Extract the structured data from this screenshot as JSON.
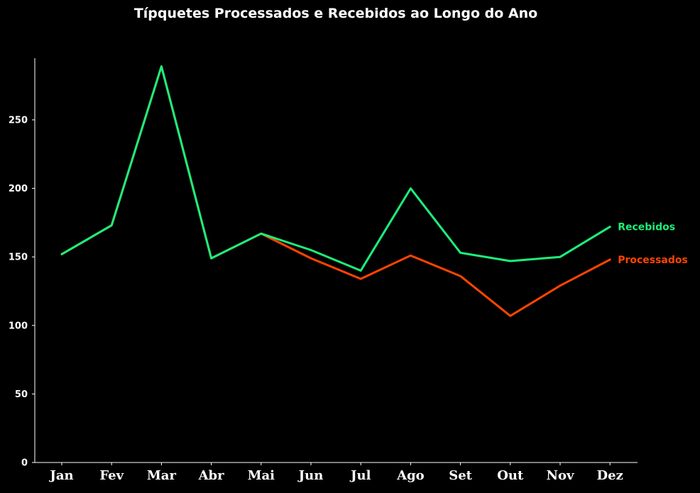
{
  "chart_data": {
    "type": "line",
    "title": "Típquetes Processados e Recebidos ao Longo do Ano",
    "xlabel": "",
    "ylabel": "",
    "categories": [
      "Jan",
      "Fev",
      "Mar",
      "Abr",
      "Mai",
      "Jun",
      "Jul",
      "Ago",
      "Set",
      "Out",
      "Nov",
      "Dez"
    ],
    "yticks": [
      0,
      50,
      100,
      150,
      200,
      250
    ],
    "ylim": [
      0,
      300
    ],
    "grid": false,
    "legend": "inline labels at right end of lines",
    "series": [
      {
        "name": "Processados",
        "color": "#ff4500",
        "values": [
          152,
          173,
          289,
          149,
          167,
          149,
          134,
          151,
          136,
          107,
          129,
          148
        ]
      },
      {
        "name": "Recebidos",
        "color": "#1cf07a",
        "values": [
          152,
          173,
          289,
          149,
          167,
          155,
          140,
          200,
          153,
          147,
          150,
          172
        ]
      }
    ]
  }
}
